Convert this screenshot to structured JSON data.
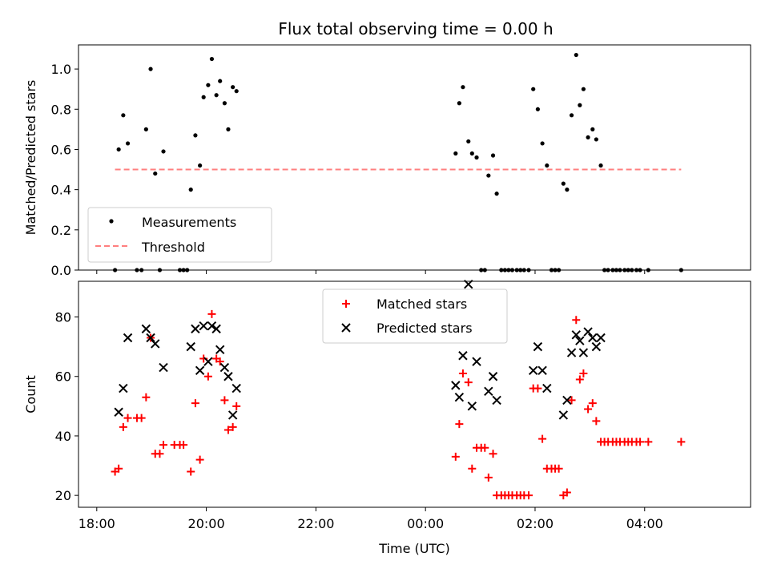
{
  "title": "Flux total observing time = 0.00 h",
  "chart_data": [
    {
      "type": "scatter",
      "panel": "top",
      "ylabel": "Matched/Predicted stars",
      "xlabel": "",
      "ylim": [
        0,
        1.12
      ],
      "yticks": [
        "0.0",
        "0.2",
        "0.4",
        "0.6",
        "0.8",
        "1.0"
      ],
      "ytick_values": [
        0,
        0.2,
        0.4,
        0.6,
        0.8,
        1.0
      ],
      "grid": false,
      "legend": "lower-left",
      "series": [
        {
          "name": "Measurements",
          "marker": "dot",
          "color": "#000000",
          "points": [
            [
              "18:20",
              0.0
            ],
            [
              "18:24",
              0.6
            ],
            [
              "18:29",
              0.77
            ],
            [
              "18:34",
              0.63
            ],
            [
              "18:44",
              0.0
            ],
            [
              "18:49",
              0.0
            ],
            [
              "18:54",
              0.7
            ],
            [
              "18:59",
              1.0
            ],
            [
              "19:04",
              0.48
            ],
            [
              "19:09",
              0.0
            ],
            [
              "19:13",
              0.59
            ],
            [
              "19:31",
              0.0
            ],
            [
              "19:35",
              0.0
            ],
            [
              "19:39",
              0.0
            ],
            [
              "19:43",
              0.4
            ],
            [
              "19:48",
              0.67
            ],
            [
              "19:53",
              0.52
            ],
            [
              "19:57",
              0.86
            ],
            [
              "20:02",
              0.92
            ],
            [
              "20:06",
              1.05
            ],
            [
              "20:11",
              0.87
            ],
            [
              "20:15",
              0.94
            ],
            [
              "20:20",
              0.83
            ],
            [
              "20:24",
              0.7
            ],
            [
              "20:29",
              0.91
            ],
            [
              "20:33",
              0.89
            ],
            [
              "00:33",
              0.58
            ],
            [
              "00:37",
              0.83
            ],
            [
              "00:41",
              0.91
            ],
            [
              "00:47",
              0.64
            ],
            [
              "00:51",
              0.58
            ],
            [
              "00:56",
              0.56
            ],
            [
              "01:01",
              0.0
            ],
            [
              "01:05",
              0.0
            ],
            [
              "01:09",
              0.47
            ],
            [
              "01:14",
              0.57
            ],
            [
              "01:18",
              0.38
            ],
            [
              "01:23",
              0.0
            ],
            [
              "01:27",
              0.0
            ],
            [
              "01:31",
              0.0
            ],
            [
              "01:35",
              0.0
            ],
            [
              "01:40",
              0.0
            ],
            [
              "01:44",
              0.0
            ],
            [
              "01:48",
              0.0
            ],
            [
              "01:53",
              0.0
            ],
            [
              "01:58",
              0.9
            ],
            [
              "02:03",
              0.8
            ],
            [
              "02:08",
              0.63
            ],
            [
              "02:13",
              0.52
            ],
            [
              "02:18",
              0.0
            ],
            [
              "02:22",
              0.0
            ],
            [
              "02:26",
              0.0
            ],
            [
              "02:31",
              0.43
            ],
            [
              "02:35",
              0.4
            ],
            [
              "02:40",
              0.77
            ],
            [
              "02:45",
              1.07
            ],
            [
              "02:49",
              0.82
            ],
            [
              "02:53",
              0.9
            ],
            [
              "02:58",
              0.66
            ],
            [
              "03:03",
              0.7
            ],
            [
              "03:07",
              0.65
            ],
            [
              "03:12",
              0.52
            ],
            [
              "03:16",
              0.0
            ],
            [
              "03:20",
              0.0
            ],
            [
              "03:25",
              0.0
            ],
            [
              "03:29",
              0.0
            ],
            [
              "03:33",
              0.0
            ],
            [
              "03:38",
              0.0
            ],
            [
              "03:42",
              0.0
            ],
            [
              "03:46",
              0.0
            ],
            [
              "03:51",
              0.0
            ],
            [
              "03:55",
              0.0
            ],
            [
              "04:04",
              0.0
            ],
            [
              "04:40",
              0.0
            ]
          ]
        },
        {
          "name": "Threshold",
          "style": "dashed-line",
          "color": "#ff7f7f",
          "points": [
            [
              "18:20",
              0.5
            ],
            [
              "04:40",
              0.5
            ]
          ]
        }
      ]
    },
    {
      "type": "scatter",
      "panel": "bottom",
      "ylabel": "Count",
      "xlabel": "Time (UTC)",
      "ylim": [
        16,
        92
      ],
      "yticks": [
        "20",
        "40",
        "60",
        "80"
      ],
      "ytick_values": [
        20,
        40,
        60,
        80
      ],
      "xticks": [
        "18:00",
        "20:00",
        "22:00",
        "00:00",
        "02:00",
        "04:00"
      ],
      "xtick_times": [
        "18:00",
        "20:00",
        "22:00",
        "00:00",
        "02:00",
        "04:00"
      ],
      "xlim": [
        "17:40",
        "05:56"
      ],
      "grid": false,
      "legend": "top-center",
      "series": [
        {
          "name": "Matched stars",
          "marker": "plus",
          "color": "#ff0000",
          "points": [
            [
              "18:20",
              28
            ],
            [
              "18:24",
              29
            ],
            [
              "18:29",
              43
            ],
            [
              "18:34",
              46
            ],
            [
              "18:44",
              46
            ],
            [
              "18:49",
              46
            ],
            [
              "18:54",
              53
            ],
            [
              "18:59",
              73
            ],
            [
              "19:04",
              34
            ],
            [
              "19:09",
              34
            ],
            [
              "19:13",
              37
            ],
            [
              "19:25",
              37
            ],
            [
              "19:31",
              37
            ],
            [
              "19:35",
              37
            ],
            [
              "19:43",
              28
            ],
            [
              "19:48",
              51
            ],
            [
              "19:53",
              32
            ],
            [
              "19:57",
              66
            ],
            [
              "20:02",
              60
            ],
            [
              "20:06",
              81
            ],
            [
              "20:11",
              66
            ],
            [
              "20:15",
              65
            ],
            [
              "20:20",
              52
            ],
            [
              "20:24",
              42
            ],
            [
              "20:29",
              43
            ],
            [
              "20:33",
              50
            ],
            [
              "00:33",
              33
            ],
            [
              "00:37",
              44
            ],
            [
              "00:41",
              61
            ],
            [
              "00:47",
              58
            ],
            [
              "00:51",
              29
            ],
            [
              "00:56",
              36
            ],
            [
              "01:01",
              36
            ],
            [
              "01:05",
              36
            ],
            [
              "01:09",
              26
            ],
            [
              "01:14",
              34
            ],
            [
              "01:18",
              20
            ],
            [
              "01:23",
              20
            ],
            [
              "01:27",
              20
            ],
            [
              "01:31",
              20
            ],
            [
              "01:35",
              20
            ],
            [
              "01:40",
              20
            ],
            [
              "01:44",
              20
            ],
            [
              "01:48",
              20
            ],
            [
              "01:53",
              20
            ],
            [
              "01:58",
              56
            ],
            [
              "02:03",
              56
            ],
            [
              "02:08",
              39
            ],
            [
              "02:13",
              29
            ],
            [
              "02:18",
              29
            ],
            [
              "02:22",
              29
            ],
            [
              "02:26",
              29
            ],
            [
              "02:31",
              20
            ],
            [
              "02:35",
              21
            ],
            [
              "02:40",
              52
            ],
            [
              "02:45",
              79
            ],
            [
              "02:49",
              59
            ],
            [
              "02:53",
              61
            ],
            [
              "02:58",
              49
            ],
            [
              "03:03",
              51
            ],
            [
              "03:07",
              45
            ],
            [
              "03:12",
              38
            ],
            [
              "03:16",
              38
            ],
            [
              "03:20",
              38
            ],
            [
              "03:25",
              38
            ],
            [
              "03:29",
              38
            ],
            [
              "03:33",
              38
            ],
            [
              "03:38",
              38
            ],
            [
              "03:42",
              38
            ],
            [
              "03:46",
              38
            ],
            [
              "03:51",
              38
            ],
            [
              "03:55",
              38
            ],
            [
              "04:04",
              38
            ],
            [
              "04:40",
              38
            ]
          ]
        },
        {
          "name": "Predicted stars",
          "marker": "x",
          "color": "#000000",
          "points": [
            [
              "18:24",
              48
            ],
            [
              "18:29",
              56
            ],
            [
              "18:34",
              73
            ],
            [
              "18:54",
              76
            ],
            [
              "18:59",
              73
            ],
            [
              "19:04",
              71
            ],
            [
              "19:13",
              63
            ],
            [
              "19:43",
              70
            ],
            [
              "19:48",
              76
            ],
            [
              "19:53",
              62
            ],
            [
              "19:57",
              77
            ],
            [
              "20:02",
              65
            ],
            [
              "20:06",
              77
            ],
            [
              "20:11",
              76
            ],
            [
              "20:15",
              69
            ],
            [
              "20:20",
              63
            ],
            [
              "20:24",
              60
            ],
            [
              "20:29",
              47
            ],
            [
              "20:33",
              56
            ],
            [
              "00:33",
              57
            ],
            [
              "00:37",
              53
            ],
            [
              "00:41",
              67
            ],
            [
              "00:47",
              91
            ],
            [
              "00:51",
              50
            ],
            [
              "00:56",
              65
            ],
            [
              "01:09",
              55
            ],
            [
              "01:14",
              60
            ],
            [
              "01:18",
              52
            ],
            [
              "01:58",
              62
            ],
            [
              "02:03",
              70
            ],
            [
              "02:08",
              62
            ],
            [
              "02:13",
              56
            ],
            [
              "02:31",
              47
            ],
            [
              "02:35",
              52
            ],
            [
              "02:40",
              68
            ],
            [
              "02:45",
              74
            ],
            [
              "02:49",
              72
            ],
            [
              "02:53",
              68
            ],
            [
              "02:58",
              75
            ],
            [
              "03:03",
              73
            ],
            [
              "03:07",
              70
            ],
            [
              "03:12",
              73
            ]
          ]
        }
      ]
    }
  ]
}
